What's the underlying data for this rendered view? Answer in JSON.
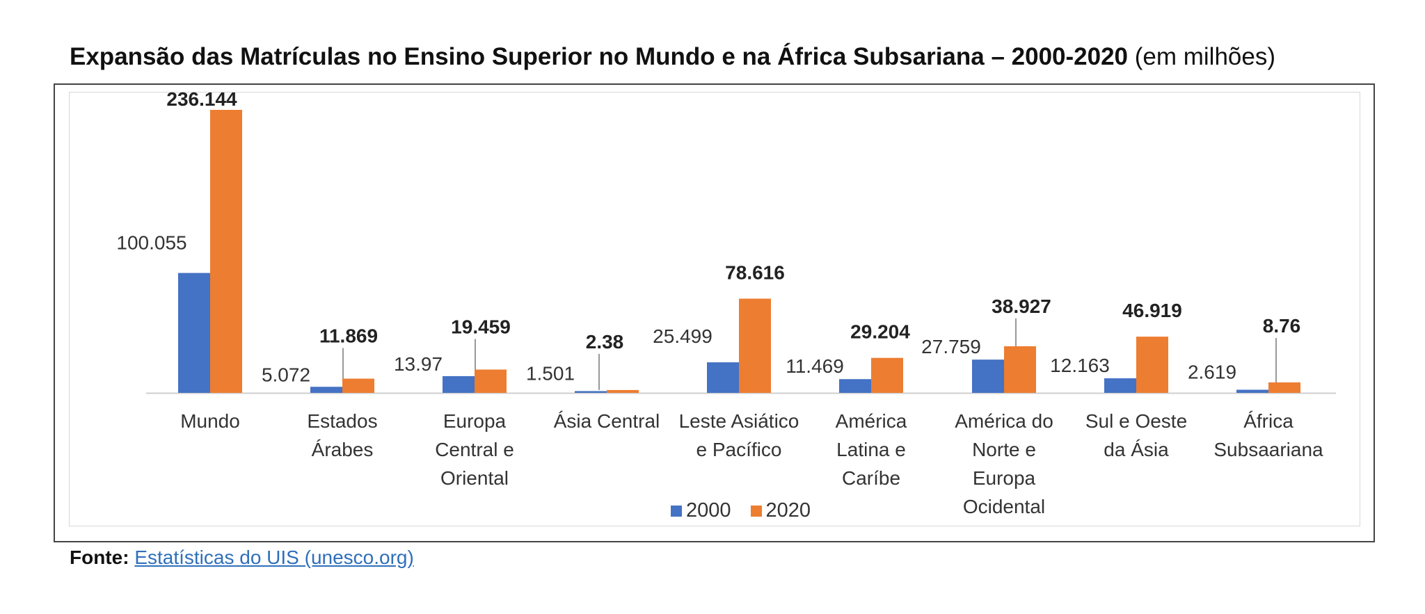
{
  "title": {
    "bold": "Expansão das Matrículas no Ensino Superior no Mundo e na África Subsariana – 2000-2020",
    "normal": "(em milhões)"
  },
  "source": {
    "label": "Fonte:",
    "link_text": "Estatísticas do UIS (unesco.org)"
  },
  "colors": {
    "s2000": "#4472c4",
    "s2020": "#ed7d31"
  },
  "chart_data": {
    "type": "bar",
    "title": "Expansão das Matrículas no Ensino Superior no Mundo e na África Subsariana – 2000-2020 (em milhões)",
    "categories": [
      [
        "Mundo"
      ],
      [
        "Estados",
        "Árabes"
      ],
      [
        "Europa",
        "Central e",
        "Oriental"
      ],
      [
        "Ásia Central"
      ],
      [
        "Leste Asiático",
        "e Pacífico"
      ],
      [
        "América",
        "Latina e",
        "Caríbe"
      ],
      [
        "América do",
        "Norte e",
        "Europa",
        "Ocidental"
      ],
      [
        "Sul e Oeste",
        "da Ásia"
      ],
      [
        "África",
        "Subsaariana"
      ]
    ],
    "series": [
      {
        "name": "2000",
        "values": [
          100.055,
          5.072,
          13.97,
          1.501,
          25.499,
          11.469,
          27.759,
          12.163,
          2.619
        ],
        "labels": [
          "100.055",
          "5.072",
          "13.97",
          "1.501",
          "25.499",
          "11.469",
          "27.759",
          "12.163",
          "2.619"
        ]
      },
      {
        "name": "2020",
        "values": [
          236.144,
          11.869,
          19.459,
          2.38,
          78.616,
          29.204,
          38.927,
          46.919,
          8.76
        ],
        "labels": [
          "236.144",
          "11.869",
          "19.459",
          "2.38",
          "78.616",
          "29.204",
          "38.927",
          "46.919",
          "8.76"
        ]
      }
    ],
    "ylim": [
      0,
      236.144
    ],
    "legend": "bottom",
    "grid": false
  }
}
